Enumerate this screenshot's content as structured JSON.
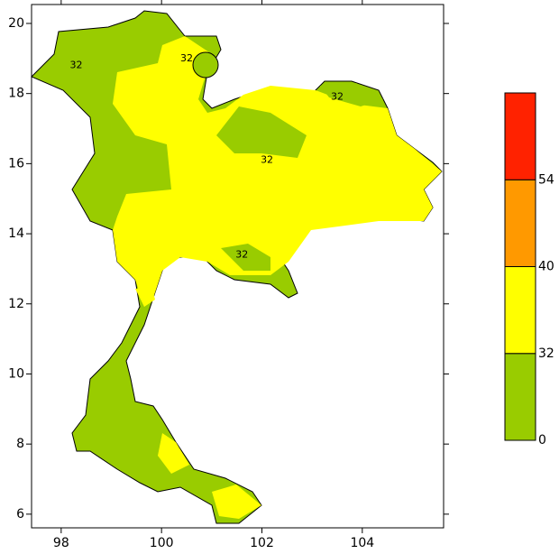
{
  "map": {
    "xlim": [
      97.41,
      105.62
    ],
    "ylim": [
      5.61,
      20.54
    ],
    "xticks": [
      98,
      100,
      102,
      104
    ],
    "yticks": [
      6,
      8,
      10,
      12,
      14,
      16,
      18,
      20
    ],
    "colorbar": {
      "levels": [
        0,
        32,
        40,
        54
      ],
      "colors": [
        "#99cc00",
        "#ffff00",
        "#ff9900",
        "#ff2200"
      ]
    },
    "contour_labels": [
      {
        "text": "32",
        "lon": 98.3,
        "lat": 18.8
      },
      {
        "text": "32",
        "lon": 100.5,
        "lat": 19.0
      },
      {
        "text": "32",
        "lon": 102.1,
        "lat": 16.1
      },
      {
        "text": "32",
        "lon": 101.6,
        "lat": 13.4
      },
      {
        "text": "32",
        "lon": 103.5,
        "lat": 17.9
      }
    ]
  }
}
